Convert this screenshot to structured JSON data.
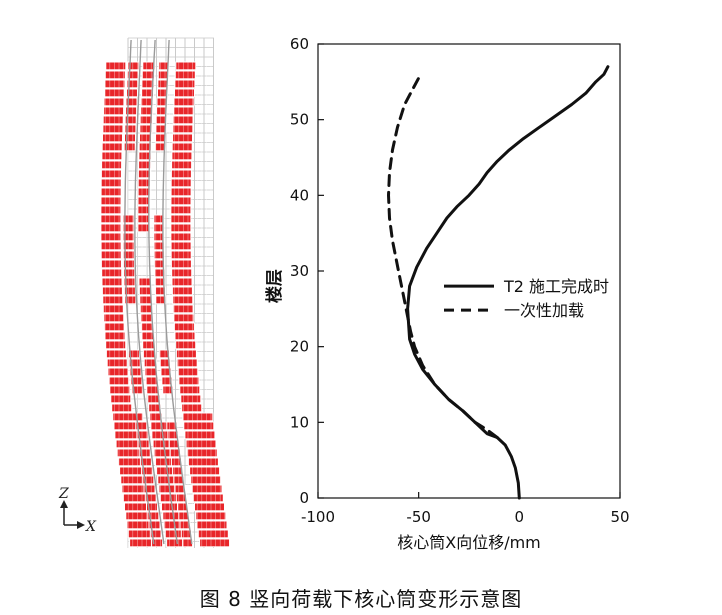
{
  "caption": "图 8   竖向荷载下核心筒变形示意图",
  "model_axes": {
    "z_label": "Z",
    "x_label": "X"
  },
  "colors": {
    "model_red": "#e8262a",
    "grid_gray": "#9a9a9a",
    "line": "#111111"
  },
  "chart_data": {
    "type": "line",
    "xlabel": "核心筒X向位移/mm",
    "ylabel": "楼层",
    "xlim": [
      -100,
      50
    ],
    "ylim": [
      0,
      60
    ],
    "xticks": [
      -100,
      -50,
      0,
      50
    ],
    "yticks": [
      0,
      10,
      20,
      30,
      40,
      50,
      60
    ],
    "grid": false,
    "legend_position": "right",
    "series": [
      {
        "name": "T2 施工完成时",
        "style": "solid",
        "x": [
          0,
          -0.5,
          -2,
          -4,
          -7,
          -11,
          -16,
          -22,
          -28,
          -35,
          -42,
          -48,
          -52,
          -54.5,
          -55.5,
          -54.5,
          -51,
          -46,
          -41,
          -36,
          -31,
          -25,
          -20,
          -16,
          -11,
          -5,
          2,
          10,
          18,
          26,
          33,
          38,
          42,
          44
        ],
        "y": [
          0,
          2,
          4,
          5.5,
          7,
          8,
          8.5,
          10,
          11.5,
          13,
          15,
          17,
          19,
          21,
          25,
          28,
          30.5,
          33,
          35,
          37,
          38.5,
          40,
          41.5,
          43,
          44.5,
          46,
          47.5,
          49,
          50.5,
          52,
          53.5,
          55,
          56,
          57
        ]
      },
      {
        "name": "一次性加载",
        "style": "dashed",
        "x": [
          -11,
          -16,
          -22,
          -28,
          -35,
          -42,
          -48,
          -52,
          -54,
          -55.5,
          -57,
          -60,
          -63,
          -64.5,
          -65,
          -64.5,
          -63,
          -60.5,
          -57,
          -53,
          -49
        ],
        "y": [
          8,
          9,
          10,
          11.5,
          13,
          15,
          17.5,
          20,
          22,
          24,
          26,
          30,
          34,
          37,
          40,
          43,
          46,
          49,
          52,
          54,
          56
        ]
      }
    ]
  }
}
